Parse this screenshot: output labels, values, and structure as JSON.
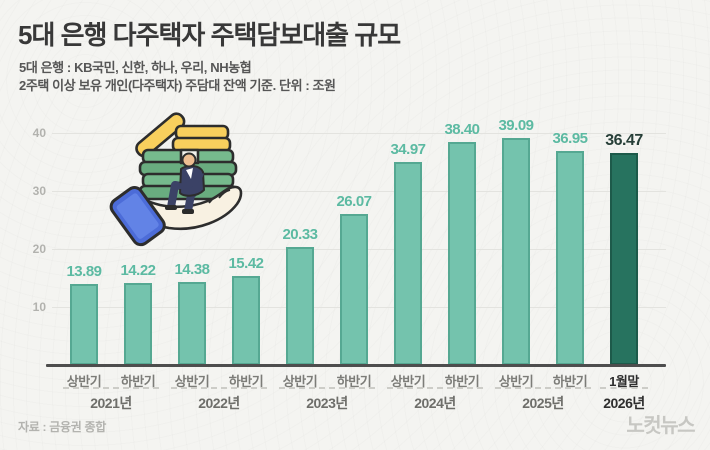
{
  "header": {
    "title": "5대 은행 다주택자 주택담보대출 규모",
    "subtitle1": "5대 은행 : KB국민, 신한, 하나, 우리, NH농협",
    "subtitle2": "2주택 이상 보유 개인(다주택자) 주담대 잔액 기준. 단위 : 조원"
  },
  "chart_data": {
    "type": "bar",
    "unit": "조원",
    "ylim": [
      0,
      40
    ],
    "y_ticks": [
      40,
      30,
      20,
      10
    ],
    "grid": true,
    "legend": "none",
    "categories": [
      "상반기",
      "하반기",
      "상반기",
      "하반기",
      "상반기",
      "하반기",
      "상반기",
      "하반기",
      "상반기",
      "하반기",
      "1월말"
    ],
    "values": [
      13.89,
      14.22,
      14.38,
      15.42,
      20.33,
      26.07,
      34.97,
      38.4,
      39.09,
      36.95,
      36.47
    ],
    "value_labels": [
      "13.89",
      "14.22",
      "14.38",
      "15.42",
      "20.33",
      "26.07",
      "34.97",
      "38.40",
      "39.09",
      "36.95",
      "36.47"
    ],
    "highlight_index": 10,
    "year_groups": [
      {
        "label": "2021년",
        "bars": [
          0,
          1
        ],
        "highlight": false
      },
      {
        "label": "2022년",
        "bars": [
          2,
          3
        ],
        "highlight": false
      },
      {
        "label": "2023년",
        "bars": [
          4,
          5
        ],
        "highlight": false
      },
      {
        "label": "2024년",
        "bars": [
          6,
          7
        ],
        "highlight": false
      },
      {
        "label": "2025년",
        "bars": [
          8,
          9
        ],
        "highlight": false
      },
      {
        "label": "2026년",
        "bars": [
          10
        ],
        "highlight": true
      }
    ],
    "colors": {
      "bar_fill": "#74c3ad",
      "bar_border": "#55a892",
      "bar_highlight_fill": "#27735f",
      "bar_highlight_border": "#1d5a4a",
      "value_label": "#5cbaa2",
      "value_label_highlight": "#273f38"
    }
  },
  "illustration": {
    "name": "hand-holding-money-stack-with-person-and-phone"
  },
  "footer": {
    "source": "자료 : 금융권 종합",
    "logo": "노컷뉴스"
  }
}
